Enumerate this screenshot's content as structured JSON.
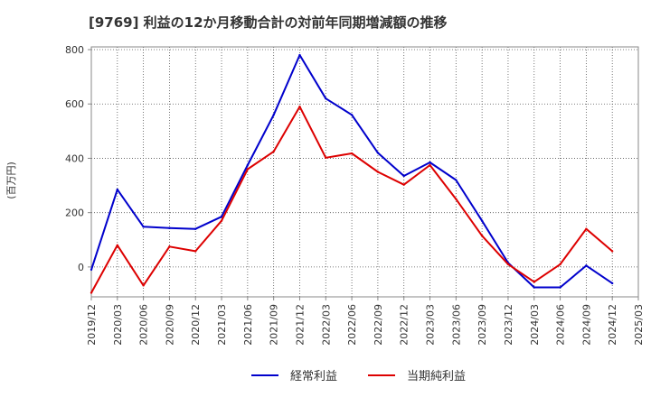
{
  "chart_data": {
    "type": "line",
    "title": "[9769]  利益の12か月移動合計の対前年同期増減額の推移",
    "ylabel": "(百万円)",
    "xlabel": "",
    "ylim": [
      -110,
      810
    ],
    "yticks": [
      0,
      200,
      400,
      600,
      800
    ],
    "grid": true,
    "legend_position": "bottom-center",
    "x": [
      "2019/12",
      "2020/03",
      "2020/06",
      "2020/09",
      "2020/12",
      "2021/03",
      "2021/06",
      "2021/09",
      "2021/12",
      "2022/03",
      "2022/06",
      "2022/09",
      "2022/12",
      "2023/03",
      "2023/06",
      "2023/09",
      "2023/12",
      "2024/03",
      "2024/06",
      "2024/09",
      "2024/12",
      "2025/03"
    ],
    "series": [
      {
        "name": "経常利益",
        "color": "#0000cc",
        "values": [
          -10,
          285,
          148,
          143,
          140,
          185,
          375,
          560,
          780,
          620,
          560,
          420,
          335,
          385,
          320,
          170,
          15,
          -75,
          -75,
          5,
          -60,
          null
        ]
      },
      {
        "name": "当期純利益",
        "color": "#dd0000",
        "values": [
          -95,
          80,
          -68,
          75,
          58,
          170,
          360,
          425,
          590,
          402,
          418,
          350,
          303,
          375,
          250,
          115,
          10,
          -55,
          10,
          140,
          58,
          null
        ]
      }
    ]
  }
}
